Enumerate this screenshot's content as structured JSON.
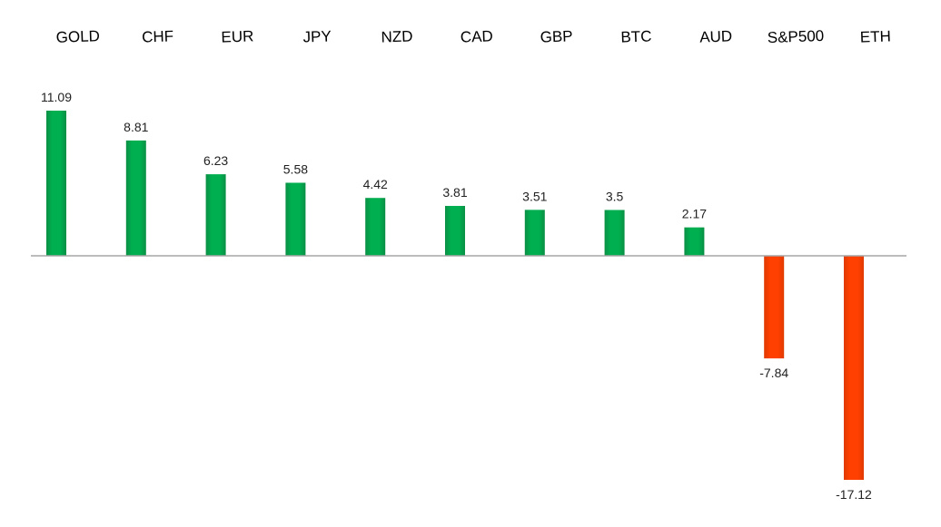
{
  "chart_data": {
    "type": "bar",
    "title": "",
    "xlabel": "",
    "ylabel": "",
    "categories": [
      "GOLD",
      "CHF",
      "EUR",
      "JPY",
      "NZD",
      "CAD",
      "GBP",
      "BTC",
      "AUD",
      "S&P500",
      "ETH"
    ],
    "values": [
      11.09,
      8.81,
      6.23,
      5.58,
      4.42,
      3.81,
      3.51,
      3.5,
      2.17,
      -7.84,
      -17.12
    ],
    "value_labels": [
      "11.09",
      "8.81",
      "6.23",
      "5.58",
      "4.42",
      "3.81",
      "3.51",
      "3.5",
      "2.17",
      "-7.84",
      "-17.12"
    ],
    "ylim": [
      -18.5,
      11.5
    ],
    "grid": false,
    "legend": "none",
    "colors": {
      "positive": "#00b050",
      "positive_dark": "#0a8f45",
      "negative": "#ff4000",
      "negative_dark": "#e03a00",
      "baseline": "#a6a6a6"
    }
  }
}
